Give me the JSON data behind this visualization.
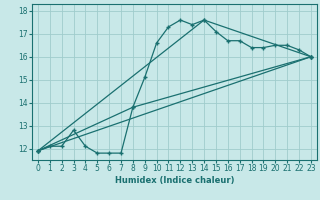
{
  "title": "",
  "xlabel": "Humidex (Indice chaleur)",
  "background_color": "#c8e8e8",
  "grid_color": "#a0cccc",
  "line_color": "#1a7070",
  "xlim": [
    -0.5,
    23.5
  ],
  "ylim": [
    11.5,
    18.3
  ],
  "yticks": [
    12,
    13,
    14,
    15,
    16,
    17,
    18
  ],
  "xticks": [
    0,
    1,
    2,
    3,
    4,
    5,
    6,
    7,
    8,
    9,
    10,
    11,
    12,
    13,
    14,
    15,
    16,
    17,
    18,
    19,
    20,
    21,
    22,
    23
  ],
  "series0_x": [
    0,
    1,
    2,
    3,
    4,
    5,
    6,
    7,
    8,
    9,
    10,
    11,
    12,
    13,
    14,
    15,
    16,
    17,
    18,
    19,
    20,
    21,
    22,
    23
  ],
  "series0_y": [
    11.9,
    12.1,
    12.1,
    12.8,
    12.1,
    11.8,
    11.8,
    11.8,
    13.8,
    15.1,
    16.6,
    17.3,
    17.6,
    17.4,
    17.6,
    17.1,
    16.7,
    16.7,
    16.4,
    16.4,
    16.5,
    16.5,
    16.3,
    16.0
  ],
  "series1_x": [
    0,
    23
  ],
  "series1_y": [
    11.9,
    16.0
  ],
  "series2_x": [
    0,
    14,
    23
  ],
  "series2_y": [
    11.9,
    17.6,
    16.0
  ],
  "series3_x": [
    0,
    8,
    23
  ],
  "series3_y": [
    11.9,
    13.8,
    16.0
  ],
  "tick_fontsize": 5.5,
  "xlabel_fontsize": 6.0,
  "linewidth": 0.9,
  "marker": "+",
  "markersize": 2.5
}
